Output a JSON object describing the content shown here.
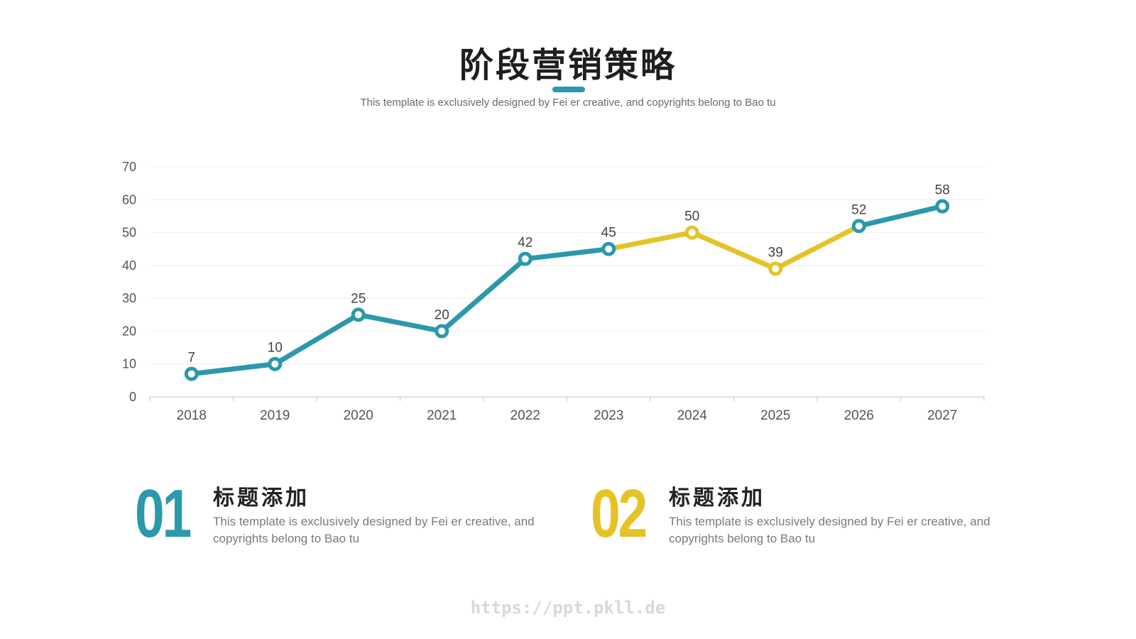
{
  "header": {
    "title": "阶段营销策略",
    "subtitle": "This template is exclusively designed by Fei er creative, and copyrights belong to Bao tu"
  },
  "colors": {
    "primary": "#2b98ad",
    "highlight": "#e5c327",
    "grid": "#eeeeee",
    "axis_text": "#555555"
  },
  "chart_data": {
    "type": "line",
    "categories": [
      "2018",
      "2019",
      "2020",
      "2021",
      "2022",
      "2023",
      "2024",
      "2025",
      "2026",
      "2027"
    ],
    "series": [
      {
        "values": [
          7,
          10,
          25,
          20,
          42,
          45,
          50,
          39,
          52,
          58
        ]
      }
    ],
    "data_labels": [
      "7",
      "10",
      "25",
      "20",
      "42",
      "45",
      "50",
      "39",
      "52",
      "58"
    ],
    "highlighted_categories": [
      "2024",
      "2025"
    ],
    "ylim": [
      0,
      70
    ],
    "yticks": [
      0,
      10,
      20,
      30,
      40,
      50,
      60,
      70
    ],
    "grid": true,
    "title": "",
    "xlabel": "",
    "ylabel": ""
  },
  "features": [
    {
      "number": "01",
      "title": "标题添加",
      "desc": "This template is exclusively designed by Fei er creative, and copyrights belong to Bao tu",
      "color": "#2b98ad"
    },
    {
      "number": "02",
      "title": "标题添加",
      "desc": "This template is exclusively designed by Fei er creative, and copyrights belong to Bao tu",
      "color": "#e5c327"
    }
  ],
  "watermark": "https://ppt.pkll.de"
}
